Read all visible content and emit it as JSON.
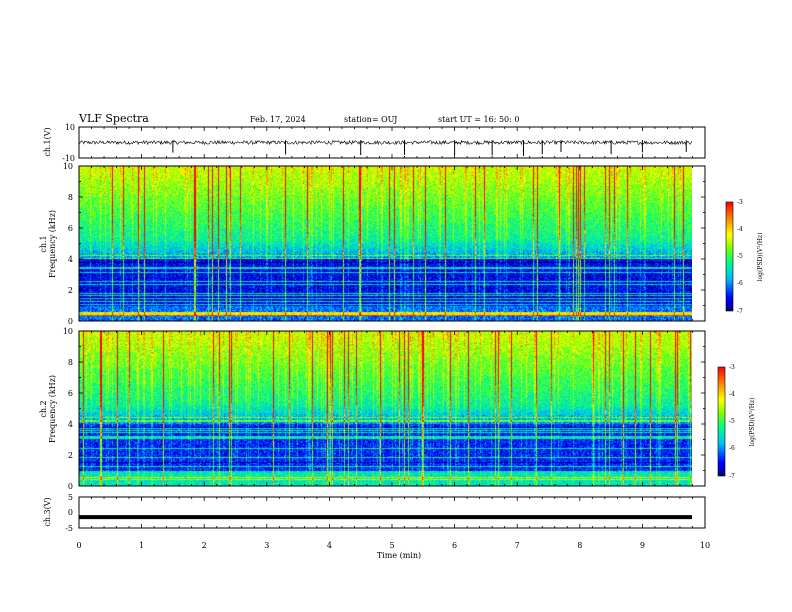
{
  "header": {
    "title": "VLF Spectra",
    "date": "Feb. 17, 2024",
    "station": "station= OUJ",
    "start": "start  UT  =   16: 50: 0"
  },
  "colors": {
    "colormap": [
      "#000080",
      "#0000ff",
      "#00c0ff",
      "#00ff80",
      "#80ff00",
      "#ffff00",
      "#ff8000",
      "#ff0000"
    ]
  },
  "chart_data": [
    {
      "type": "line",
      "id": "ch1_waveform",
      "ylabel": "ch.1(V)",
      "ylim": [
        -10,
        10
      ],
      "yticks": [
        "10",
        "-10"
      ],
      "xlim": [
        0,
        10
      ],
      "baseline": 0,
      "noise_amplitude": 1.2,
      "spikes_min": [
        1.5,
        3.3,
        4.5,
        5.2,
        6.0,
        6.6,
        7.1,
        7.4,
        7.7,
        8.5,
        9.0,
        9.7
      ]
    },
    {
      "type": "heatmap",
      "id": "ch1_spectrogram",
      "ylabel_line1": "ch.1",
      "ylabel_line2": "Frequency (kHz)",
      "ylim": [
        0,
        10
      ],
      "yticks": [
        "0",
        "2",
        "4",
        "6",
        "8",
        "10"
      ],
      "xlim": [
        0,
        9.85
      ],
      "colorbar": {
        "label": "log(PSD)(V²/Hz)",
        "range": [
          -7,
          -3
        ],
        "ticks": [
          "-3",
          "-4",
          "-5",
          "-6",
          "-7"
        ]
      }
    },
    {
      "type": "heatmap",
      "id": "ch2_spectrogram",
      "ylabel_line1": "ch.2",
      "ylabel_line2": "Frequency (kHz)",
      "ylim": [
        0,
        10
      ],
      "yticks": [
        "0",
        "2",
        "4",
        "6",
        "8",
        "10"
      ],
      "xlim": [
        0,
        9.85
      ],
      "colorbar": {
        "label": "log(PSD)(V²/Hz)",
        "range": [
          -7,
          -3
        ],
        "ticks": [
          "-3",
          "-4",
          "-5",
          "-6",
          "-7"
        ]
      }
    },
    {
      "type": "line",
      "id": "ch3_waveform",
      "ylabel": "ch.3(V)",
      "ylim": [
        -5,
        5
      ],
      "yticks": [
        "5",
        "0",
        "-5"
      ],
      "xlim": [
        0,
        9.85
      ],
      "values_constant": -1.5
    }
  ],
  "xaxis": {
    "xlabel": "Time (min)",
    "xticks": [
      "0",
      "1",
      "2",
      "3",
      "4",
      "5",
      "6",
      "7",
      "8",
      "9",
      "10"
    ]
  }
}
